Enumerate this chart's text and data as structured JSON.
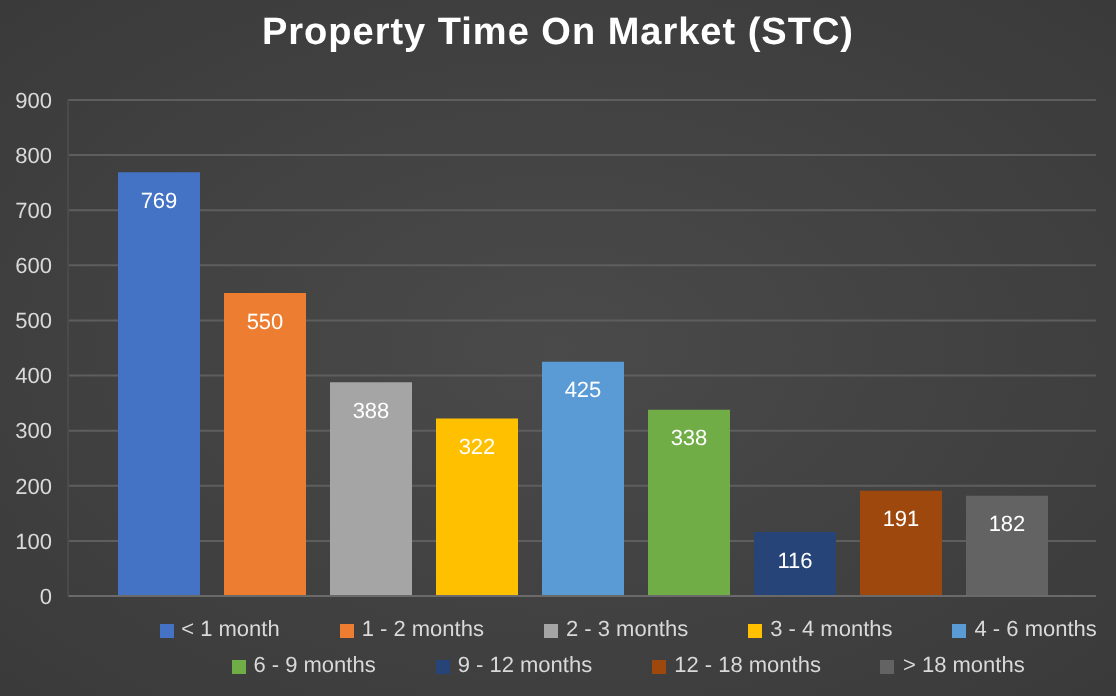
{
  "chart_data": {
    "type": "bar",
    "title": "Property Time On Market (STC)",
    "categories": [
      null
    ],
    "series": [
      {
        "name": "< 1 month",
        "color": "#4472c4",
        "values": [
          769
        ]
      },
      {
        "name": "1 - 2 months",
        "color": "#ed7d31",
        "values": [
          550
        ]
      },
      {
        "name": "2 - 3 months",
        "color": "#a5a5a5",
        "values": [
          388
        ]
      },
      {
        "name": "3 - 4 months",
        "color": "#ffc000",
        "values": [
          322
        ]
      },
      {
        "name": "4 - 6 months",
        "color": "#5b9bd5",
        "values": [
          425
        ]
      },
      {
        "name": "6 - 9 months",
        "color": "#70ad47",
        "values": [
          338
        ]
      },
      {
        "name": "9 - 12 months",
        "color": "#264478",
        "values": [
          116
        ]
      },
      {
        "name": "12 - 18 months",
        "color": "#9e480e",
        "values": [
          191
        ]
      },
      {
        "name": "> 18 months",
        "color": "#636363",
        "values": [
          182
        ]
      }
    ],
    "ylim": [
      0,
      900
    ],
    "yticks": [
      0,
      100,
      200,
      300,
      400,
      500,
      600,
      700,
      800,
      900
    ],
    "grid": "y",
    "legend": "bottom",
    "data_labels": true
  }
}
